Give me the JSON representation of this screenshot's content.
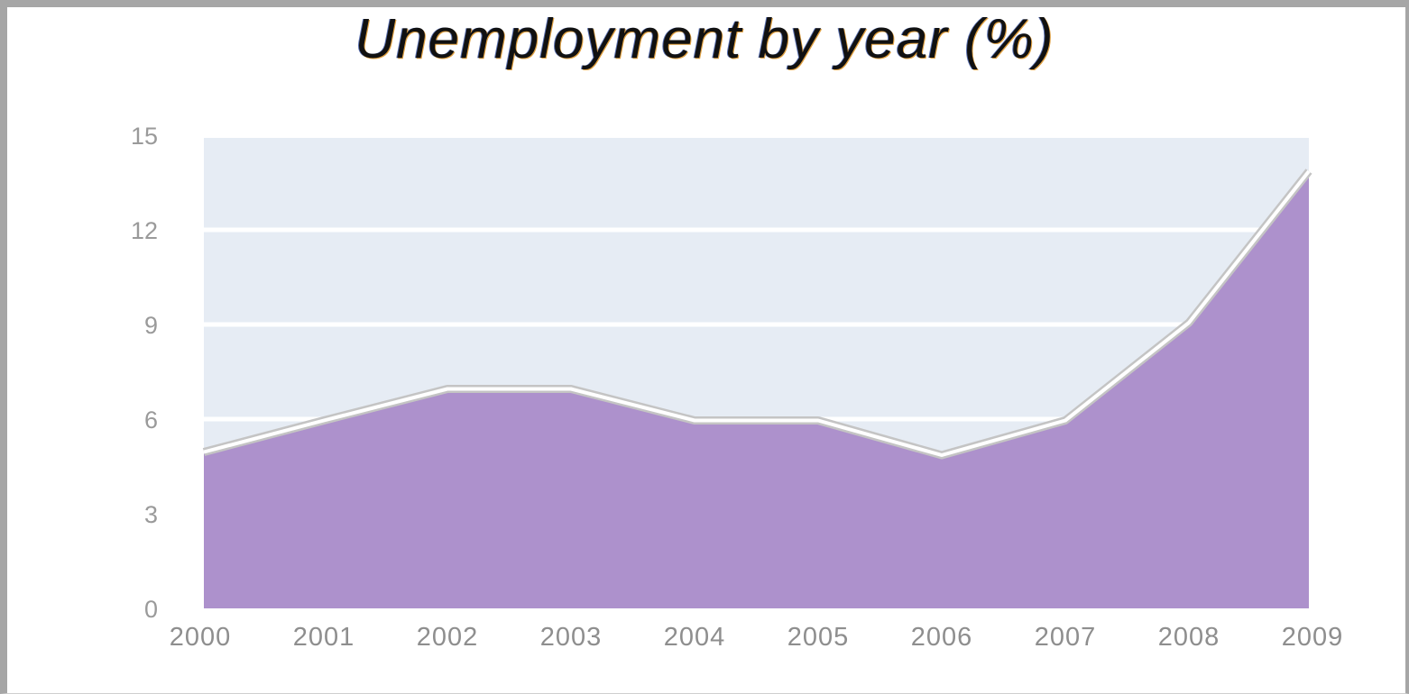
{
  "chart_data": {
    "type": "area",
    "title": "Unemployment by year (%)",
    "xlabel": "",
    "ylabel": "",
    "categories": [
      "2000",
      "2001",
      "2002",
      "2003",
      "2004",
      "2005",
      "2006",
      "2007",
      "2008",
      "2009"
    ],
    "series": [
      {
        "values": [
          4.9,
          5.9,
          6.9,
          6.9,
          5.9,
          5.9,
          4.8,
          5.9,
          9.0,
          13.8
        ]
      }
    ],
    "yticks": [
      "0",
      "3",
      "6",
      "9",
      "12",
      "15"
    ],
    "ylim": [
      0,
      15
    ],
    "ytick_values": [
      0,
      3,
      6,
      9,
      12,
      15
    ],
    "grid": true,
    "colors": {
      "fill": "#ad91cc",
      "plot_background": "#e6ecf4",
      "gridline": "#ffffff",
      "line": "#ffffff",
      "line_shadow": "#c4c4c4",
      "tick_text": "#9a9a9a"
    }
  }
}
